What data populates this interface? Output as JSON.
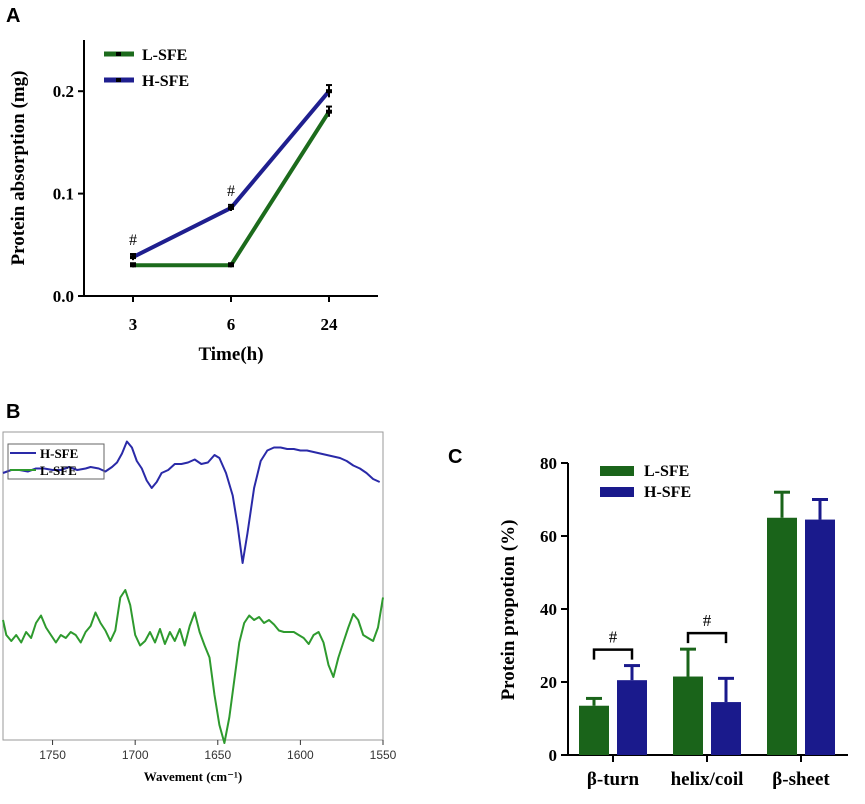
{
  "chart_data": [
    {
      "panel": "A",
      "type": "line",
      "categories": [
        "3",
        "6",
        "24"
      ],
      "xlabel": "Time(h)",
      "ylabel": "Protein absorption (mg)",
      "ylim": [
        0,
        0.25
      ],
      "yticks": [
        "0.0",
        "0.1",
        "0.2"
      ],
      "legend_position": "top-left",
      "series": [
        {
          "name": "L-SFE",
          "color": "#1c6b1c",
          "values": [
            0.03,
            0.03,
            0.18
          ],
          "errors": [
            0.002,
            0.002,
            0.005
          ]
        },
        {
          "name": "H-SFE",
          "color": "#1f1f8f",
          "values": [
            0.038,
            0.086,
            0.2
          ],
          "errors": [
            0.003,
            0.003,
            0.006
          ]
        }
      ],
      "annotations": [
        {
          "category": "3",
          "text": "#"
        },
        {
          "category": "6",
          "text": "#"
        }
      ]
    },
    {
      "panel": "B",
      "type": "line",
      "xlabel": "Wavement (cm⁻¹)",
      "xlim": [
        1780,
        1550
      ],
      "xticks": [
        "1750",
        "1700",
        "1650",
        "1600",
        "1550"
      ],
      "legend_position": "top-left",
      "series": [
        {
          "name": "H-SFE",
          "color": "#2a2aa8",
          "x": [
            1780,
            1775,
            1770,
            1765,
            1760,
            1755,
            1750,
            1745,
            1740,
            1735,
            1730,
            1727,
            1722,
            1718,
            1714,
            1711,
            1708,
            1705,
            1702,
            1699,
            1696,
            1693,
            1690,
            1687,
            1684,
            1680,
            1676,
            1672,
            1668,
            1664,
            1660,
            1656,
            1652,
            1649,
            1645,
            1641,
            1638,
            1635,
            1632,
            1628,
            1624,
            1620,
            1616,
            1612,
            1608,
            1604,
            1600,
            1596,
            1592,
            1588,
            1584,
            1580,
            1576,
            1572,
            1568,
            1564,
            1560,
            1556,
            1552
          ],
          "y": [
            0.3,
            0.32,
            0.32,
            0.31,
            0.33,
            0.33,
            0.32,
            0.32,
            0.34,
            0.32,
            0.33,
            0.34,
            0.33,
            0.31,
            0.34,
            0.37,
            0.43,
            0.51,
            0.47,
            0.38,
            0.33,
            0.25,
            0.2,
            0.24,
            0.3,
            0.32,
            0.36,
            0.36,
            0.37,
            0.39,
            0.36,
            0.37,
            0.42,
            0.4,
            0.3,
            0.15,
            -0.05,
            -0.3,
            -0.1,
            0.2,
            0.38,
            0.45,
            0.47,
            0.47,
            0.46,
            0.46,
            0.45,
            0.45,
            0.44,
            0.43,
            0.42,
            0.41,
            0.4,
            0.38,
            0.35,
            0.33,
            0.3,
            0.26,
            0.24
          ]
        },
        {
          "name": "L-SFE",
          "color": "#2e9a2e",
          "x": [
            1780,
            1778,
            1775,
            1772,
            1769,
            1766,
            1763,
            1760,
            1757,
            1754,
            1751,
            1748,
            1745,
            1742,
            1739,
            1736,
            1733,
            1730,
            1727,
            1724,
            1721,
            1718,
            1715,
            1712,
            1709,
            1706,
            1703,
            1700,
            1697,
            1694,
            1691,
            1688,
            1685,
            1682,
            1679,
            1676,
            1673,
            1670,
            1667,
            1664,
            1661,
            1658,
            1655,
            1652,
            1649,
            1646,
            1643,
            1640,
            1637,
            1634,
            1631,
            1628,
            1625,
            1622,
            1619,
            1616,
            1613,
            1610,
            1607,
            1604,
            1601,
            1598,
            1595,
            1592,
            1589,
            1586,
            1583,
            1580,
            1577,
            1574,
            1571,
            1568,
            1565,
            1562,
            1559,
            1556,
            1553,
            1550
          ],
          "y": [
            0.2,
            0.1,
            0.06,
            0.1,
            0.05,
            0.12,
            0.08,
            0.18,
            0.23,
            0.15,
            0.1,
            0.05,
            0.1,
            0.08,
            0.12,
            0.1,
            0.05,
            0.12,
            0.16,
            0.25,
            0.18,
            0.13,
            0.06,
            0.13,
            0.35,
            0.4,
            0.3,
            0.1,
            0.03,
            0.06,
            0.12,
            0.05,
            0.14,
            0.04,
            0.12,
            0.06,
            0.14,
            0.03,
            0.16,
            0.25,
            0.12,
            0.03,
            -0.05,
            -0.3,
            -0.5,
            -0.62,
            -0.45,
            -0.2,
            0.05,
            0.18,
            0.23,
            0.2,
            0.22,
            0.18,
            0.2,
            0.17,
            0.13,
            0.12,
            0.12,
            0.12,
            0.1,
            0.08,
            0.04,
            0.1,
            0.12,
            0.05,
            -0.1,
            -0.18,
            -0.05,
            0.05,
            0.15,
            0.24,
            0.2,
            0.1,
            0.08,
            0.06,
            0.15,
            0.35
          ]
        }
      ]
    },
    {
      "panel": "C",
      "type": "bar",
      "categories": [
        "β-turn",
        "helix/coil",
        "β-sheet"
      ],
      "ylabel": "Protein propotion (%)",
      "ylim": [
        0,
        80
      ],
      "yticks": [
        "0",
        "20",
        "40",
        "60",
        "80"
      ],
      "legend_position": "top-left",
      "series": [
        {
          "name": "L-SFE",
          "color": "#1a641a",
          "values": [
            13.5,
            21.5,
            65
          ],
          "errors": [
            2,
            7.5,
            7
          ]
        },
        {
          "name": "H-SFE",
          "color": "#1a1a8c",
          "values": [
            20.5,
            14.5,
            64.5
          ],
          "errors": [
            4,
            6.5,
            5.5
          ]
        }
      ],
      "significance": [
        {
          "category": "β-turn",
          "text": "#"
        },
        {
          "category": "helix/coil",
          "text": "#"
        }
      ]
    }
  ],
  "panel_labels": [
    "A",
    "B",
    "C"
  ]
}
